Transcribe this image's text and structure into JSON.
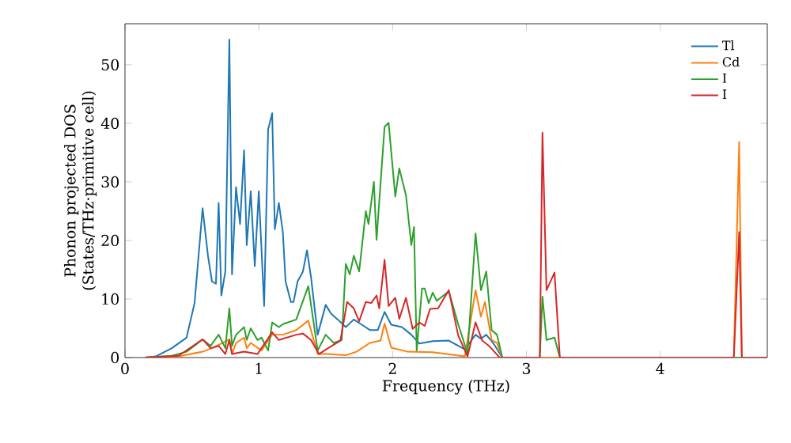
{
  "chart_data": {
    "type": "line",
    "xlabel": "Frequency (THz)",
    "ylabel": "Phonon projected DOS (States/THz·primitive cell)",
    "xlim": [
      0,
      4.8
    ],
    "ylim": [
      0,
      57
    ],
    "xticks": [
      0,
      1,
      2,
      3,
      4
    ],
    "yticks": [
      0,
      10,
      20,
      30,
      40,
      50
    ],
    "legend": "top right",
    "grid": false,
    "series": [
      {
        "name": "Tl",
        "color": "#1f77b4",
        "x": [
          0.15,
          0.23,
          0.35,
          0.46,
          0.52,
          0.58,
          0.62,
          0.65,
          0.68,
          0.7,
          0.72,
          0.75,
          0.78,
          0.8,
          0.83,
          0.86,
          0.89,
          0.91,
          0.94,
          0.97,
          1.0,
          1.04,
          1.07,
          1.1,
          1.12,
          1.15,
          1.18,
          1.2,
          1.24,
          1.26,
          1.29,
          1.33,
          1.36,
          1.39,
          1.44,
          1.5,
          1.54,
          1.59,
          1.65,
          1.71,
          1.77,
          1.83,
          1.89,
          1.94,
          1.99,
          2.07,
          2.14,
          2.2,
          2.3,
          2.42,
          2.54,
          2.62,
          2.66,
          2.7,
          2.76,
          2.82,
          4.8
        ],
        "values": [
          0,
          0.2,
          1.6,
          3.4,
          9.3,
          25.5,
          17.4,
          13.0,
          12.6,
          26.4,
          10.6,
          14.7,
          54.3,
          14.2,
          29.1,
          22.8,
          35.4,
          19.2,
          28.4,
          15.6,
          28.4,
          8.8,
          39.0,
          41.7,
          21.9,
          26.4,
          21.4,
          13.0,
          9.5,
          9.5,
          13.0,
          14.7,
          18.3,
          13.8,
          3.9,
          9.0,
          7.5,
          6.5,
          5.2,
          6.5,
          5.6,
          4.7,
          4.7,
          7.8,
          5.6,
          5.2,
          3.9,
          2.4,
          2.8,
          2.9,
          1.4,
          3.9,
          3.2,
          3.9,
          2.2,
          0,
          0
        ]
      },
      {
        "name": "Cd",
        "color": "#ff7f0e",
        "x": [
          0.15,
          0.4,
          0.58,
          0.66,
          0.78,
          0.8,
          0.83,
          0.89,
          0.91,
          0.94,
          1.02,
          1.1,
          1.18,
          1.28,
          1.37,
          1.44,
          1.51,
          1.65,
          1.73,
          1.83,
          1.91,
          1.94,
          1.99,
          2.11,
          2.3,
          2.54,
          2.62,
          2.66,
          2.69,
          2.74,
          2.78,
          2.82,
          4.55,
          4.59,
          4.61,
          4.8
        ],
        "values": [
          0,
          0.2,
          1.0,
          1.7,
          3.1,
          0.6,
          2.5,
          3.4,
          1.6,
          2.5,
          1.2,
          3.9,
          3.9,
          4.7,
          6.3,
          0.6,
          0.6,
          0.4,
          1.0,
          2.5,
          2.9,
          5.8,
          1.7,
          1.0,
          0.9,
          0.2,
          11.5,
          7.0,
          9.5,
          3.0,
          2.5,
          0,
          0,
          36.8,
          0,
          0
        ]
      },
      {
        "name": "I",
        "color": "#2ca02c",
        "x": [
          0.15,
          0.35,
          0.46,
          0.58,
          0.64,
          0.7,
          0.75,
          0.78,
          0.8,
          0.83,
          0.89,
          0.91,
          0.94,
          0.99,
          1.02,
          1.07,
          1.1,
          1.15,
          1.18,
          1.28,
          1.37,
          1.44,
          1.5,
          1.56,
          1.62,
          1.65,
          1.68,
          1.71,
          1.75,
          1.8,
          1.82,
          1.86,
          1.88,
          1.94,
          1.97,
          2.02,
          2.05,
          2.1,
          2.14,
          2.16,
          2.18,
          2.22,
          2.24,
          2.27,
          2.3,
          2.33,
          2.42,
          2.49,
          2.56,
          2.62,
          2.66,
          2.7,
          2.74,
          2.78,
          2.82,
          3.1,
          3.12,
          3.15,
          3.21,
          3.25,
          4.8
        ],
        "values": [
          0,
          0.3,
          1.0,
          3.1,
          2.0,
          3.9,
          1.6,
          8.4,
          2.0,
          3.9,
          5.2,
          3.0,
          5.0,
          3.0,
          3.4,
          1.2,
          6.0,
          5.2,
          5.7,
          6.5,
          12.2,
          1.2,
          3.9,
          2.5,
          3.0,
          16.0,
          14.2,
          17.4,
          14.7,
          25.0,
          22.8,
          30.0,
          20.1,
          39.4,
          40.1,
          27.5,
          32.3,
          27.7,
          19.2,
          22.3,
          1.2,
          11.8,
          11.8,
          9.3,
          11.1,
          9.7,
          11.3,
          5.7,
          0.7,
          21.2,
          11.5,
          14.7,
          4.7,
          3.9,
          0,
          0,
          10.4,
          3.0,
          3.4,
          0,
          0
        ]
      },
      {
        "name": "I",
        "color": "#d62728",
        "x": [
          0.15,
          0.4,
          0.58,
          0.64,
          0.7,
          0.75,
          0.78,
          0.8,
          0.89,
          0.99,
          1.1,
          1.15,
          1.28,
          1.33,
          1.39,
          1.45,
          1.51,
          1.61,
          1.66,
          1.71,
          1.75,
          1.8,
          1.84,
          1.88,
          1.9,
          1.94,
          1.97,
          2.02,
          2.05,
          2.1,
          2.15,
          2.2,
          2.24,
          2.28,
          2.34,
          2.42,
          2.49,
          2.56,
          2.62,
          2.67,
          2.72,
          2.8,
          3.1,
          3.12,
          3.15,
          3.21,
          3.25,
          4.55,
          4.59,
          4.61,
          4.8
        ],
        "values": [
          0,
          0.3,
          3.1,
          1.6,
          2.0,
          0.6,
          3.0,
          0.6,
          1.0,
          0.6,
          4.3,
          3.0,
          3.9,
          4.1,
          3.0,
          0.6,
          1.5,
          2.9,
          9.5,
          8.4,
          6.2,
          9.5,
          9.3,
          10.6,
          8.4,
          16.7,
          8.8,
          10.2,
          6.6,
          10.2,
          4.9,
          6.0,
          5.4,
          8.3,
          8.4,
          11.5,
          3.8,
          0.2,
          6.0,
          2.9,
          2.0,
          0,
          0,
          38.4,
          11.5,
          14.5,
          0,
          0,
          21.4,
          0,
          0
        ]
      }
    ]
  }
}
